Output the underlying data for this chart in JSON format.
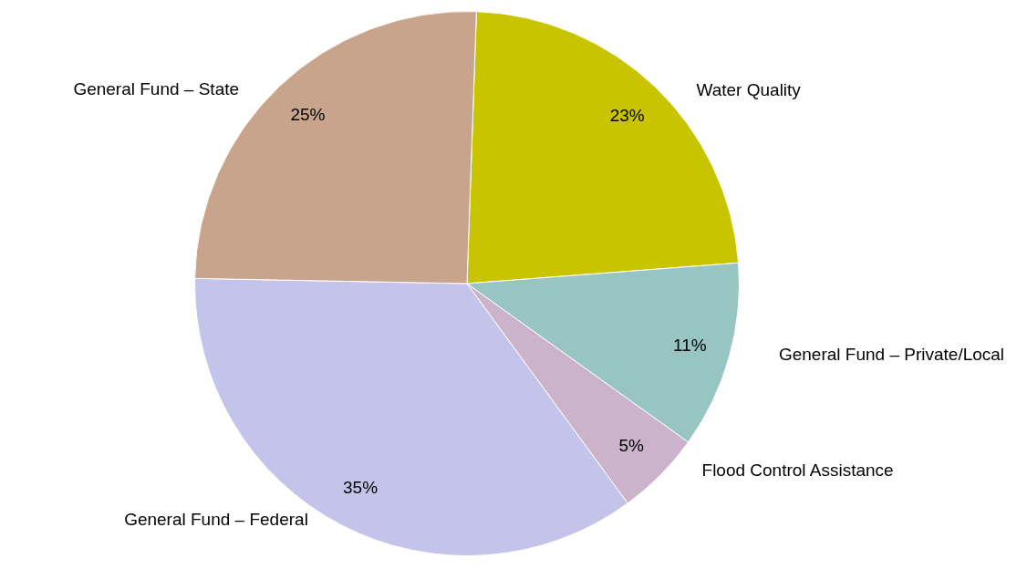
{
  "chart_data": {
    "type": "pie",
    "categories": [
      "Water Quality",
      "General Fund – Private/Local",
      "Flood Control Assistance",
      "General Fund – Federal",
      "General Fund – State"
    ],
    "values": [
      23,
      11,
      5,
      35,
      25
    ],
    "value_labels": [
      "23%",
      "11%",
      "5%",
      "35%",
      "25%"
    ],
    "colors": [
      "#c8c400",
      "#98c4c2",
      "#cbb4cb",
      "#c4c4ea",
      "#c8a48c"
    ],
    "legend": false
  }
}
